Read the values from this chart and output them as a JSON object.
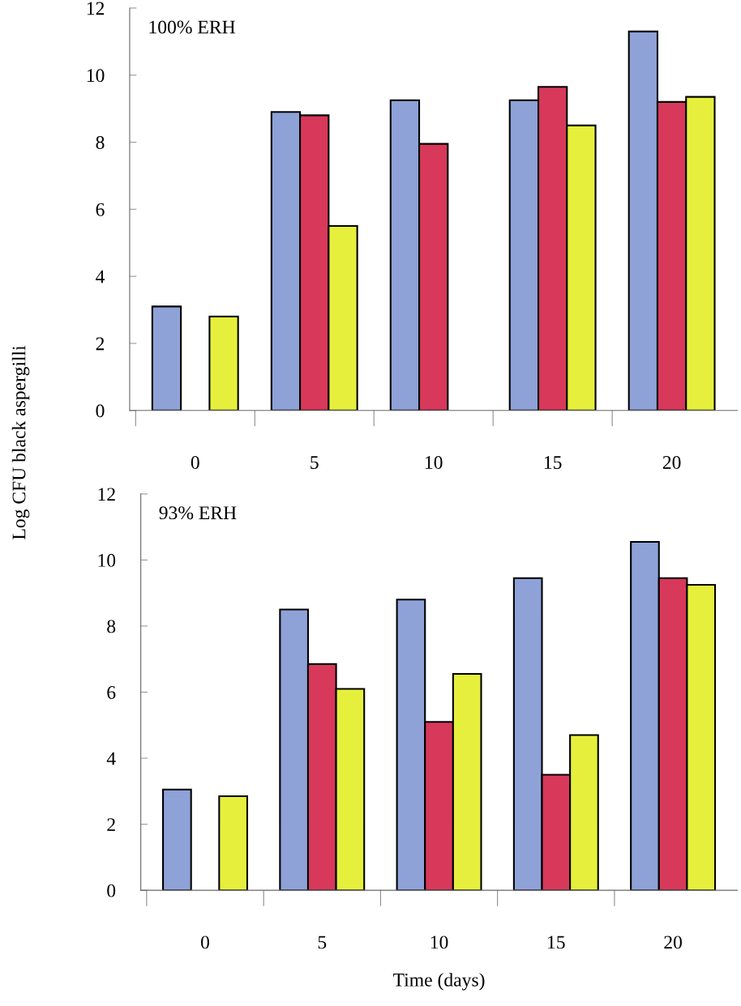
{
  "chart_data": [
    {
      "type": "bar",
      "title": "100% ERH",
      "ylabel": "Log CFU black aspergilli",
      "categories": [
        "0",
        "5",
        "10",
        "15",
        "20"
      ],
      "ylim": [
        0,
        12
      ],
      "yticks": [
        0,
        2,
        4,
        6,
        8,
        10,
        12
      ],
      "series": [
        {
          "color": "#8ea2d8",
          "values": [
            3.1,
            8.9,
            9.25,
            9.25,
            11.3
          ]
        },
        {
          "color": "#d8385a",
          "values": [
            null,
            8.8,
            7.95,
            9.65,
            9.2
          ]
        },
        {
          "color": "#e6f03c",
          "values": [
            2.8,
            5.5,
            null,
            8.5,
            9.35
          ]
        }
      ]
    },
    {
      "type": "bar",
      "title": "93% ERH",
      "xlabel": "Time (days)",
      "categories": [
        "0",
        "5",
        "10",
        "15",
        "20"
      ],
      "ylim": [
        0,
        12
      ],
      "yticks": [
        0,
        2,
        4,
        6,
        8,
        10,
        12
      ],
      "series": [
        {
          "color": "#8ea2d8",
          "values": [
            3.05,
            8.5,
            8.8,
            9.45,
            10.55
          ]
        },
        {
          "color": "#d8385a",
          "values": [
            null,
            6.85,
            5.1,
            3.5,
            9.45
          ]
        },
        {
          "color": "#e6f03c",
          "values": [
            2.85,
            6.1,
            6.55,
            4.7,
            9.25
          ]
        }
      ]
    }
  ]
}
